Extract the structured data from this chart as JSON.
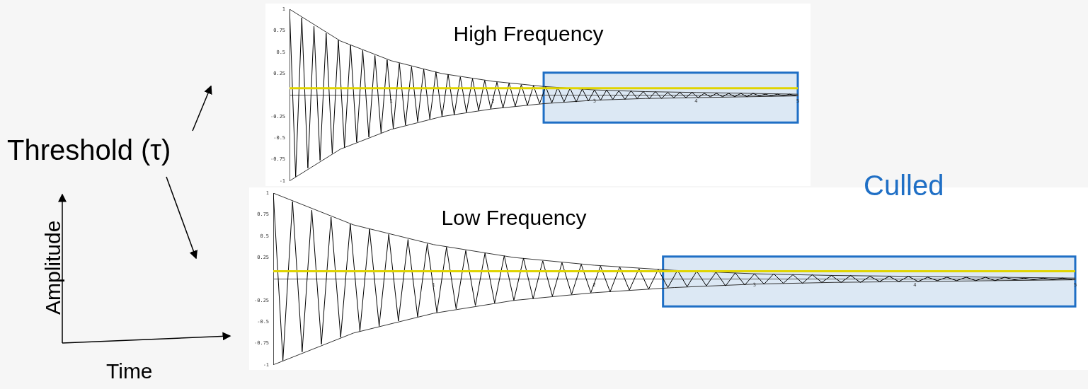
{
  "chart_data": [
    {
      "type": "line",
      "title": "High Frequency",
      "annotations": [
        "Threshold (τ)"
      ],
      "x": [
        0,
        0.06,
        0.12,
        0.18,
        0.24,
        0.3,
        0.36,
        0.42,
        0.48,
        0.54,
        0.6,
        0.66,
        0.72,
        0.78,
        0.84,
        0.9,
        0.96,
        1.02,
        1.08,
        1.14,
        1.2,
        1.26,
        1.32,
        1.38,
        1.44,
        1.5,
        1.56,
        1.62,
        1.68,
        1.74,
        1.8,
        1.86,
        1.92,
        1.98,
        2.04,
        2.1,
        2.16,
        2.22,
        2.28,
        2.34,
        2.4,
        2.46,
        2.52,
        2.58,
        2.64,
        2.7,
        2.76,
        2.82,
        2.88,
        2.94,
        3,
        3.06,
        3.12,
        3.18,
        3.24,
        3.3,
        3.36,
        3.42,
        3.48,
        3.54,
        3.6,
        3.66,
        3.72,
        3.78,
        3.84,
        3.9,
        3.96,
        4.02,
        4.08,
        4.14,
        4.2,
        4.26,
        4.32,
        4.38,
        4.44,
        4.5,
        4.56,
        4.62,
        4.68,
        4.74,
        4.8,
        4.86,
        4.92,
        4.98
      ],
      "series": [
        {
          "color": "#000000",
          "values": [
            1,
            -0.95,
            0.9,
            -0.85,
            0.8,
            -0.76,
            0.72,
            -0.68,
            0.64,
            -0.61,
            0.58,
            -0.55,
            0.52,
            -0.49,
            0.46,
            -0.44,
            0.41,
            -0.39,
            0.37,
            -0.35,
            0.33,
            -0.31,
            0.3,
            -0.28,
            0.27,
            -0.25,
            0.24,
            -0.23,
            0.21,
            -0.2,
            0.19,
            -0.18,
            0.17,
            -0.16,
            0.15,
            -0.15,
            0.14,
            -0.13,
            0.12,
            -0.12,
            0.11,
            -0.1,
            0.1,
            -0.09,
            0.09,
            -0.08,
            0.08,
            -0.08,
            0.07,
            -0.07,
            0.06,
            -0.06,
            0.06,
            -0.05,
            0.05,
            -0.05,
            0.05,
            -0.04,
            0.04,
            -0.04,
            0.04,
            -0.04,
            0.03,
            -0.03,
            0.03,
            -0.03,
            0.03,
            -0.03,
            0.02,
            -0.02,
            0.02,
            -0.02,
            0.02,
            -0.02,
            0.02,
            -0.02,
            0.02,
            -0.01,
            0.01,
            -0.01,
            0.01,
            -0.01,
            0.01,
            -0.01
          ]
        },
        {
          "color": "#333333",
          "x": [
            0,
            0.5,
            1,
            1.5,
            2,
            2.5,
            3,
            3.5,
            4,
            4.5,
            5
          ],
          "values": [
            1,
            0.63,
            0.4,
            0.25,
            0.16,
            0.1,
            0.06,
            0.04,
            0.03,
            0.02,
            0.01
          ]
        },
        {
          "color": "#333333",
          "x": [
            0,
            0.5,
            1,
            1.5,
            2,
            2.5,
            3,
            3.5,
            4,
            4.5,
            5
          ],
          "values": [
            -1,
            -0.63,
            -0.4,
            -0.25,
            -0.16,
            -0.1,
            -0.06,
            -0.04,
            -0.03,
            -0.02,
            -0.01
          ]
        }
      ],
      "xlim": [
        0,
        5
      ],
      "xticks": [
        1,
        2,
        3,
        4,
        5
      ],
      "ylim": [
        -1,
        1
      ],
      "yticks": [
        -1,
        -0.75,
        -0.5,
        -0.25,
        0.25,
        0.5,
        0.75,
        1
      ],
      "ref_lines": [
        {
          "axis": "y",
          "value": 0.08,
          "color": "#e0d400"
        }
      ],
      "bands": [
        {
          "axis": "x",
          "from": 2.5,
          "to": 5,
          "color": "#dce8f4"
        }
      ],
      "grid": false,
      "legend": false,
      "marker": "none",
      "line_style": "solid"
    },
    {
      "type": "line",
      "title": "Low Frequency",
      "xlabel": "Time",
      "ylabel": "Amplitude",
      "annotations": [
        "Culled"
      ],
      "x": [
        0,
        0.06,
        0.12,
        0.18,
        0.24,
        0.3,
        0.36,
        0.42,
        0.48,
        0.54,
        0.6,
        0.66,
        0.72,
        0.78,
        0.84,
        0.9,
        0.96,
        1.02,
        1.08,
        1.14,
        1.2,
        1.26,
        1.32,
        1.38,
        1.44,
        1.5,
        1.56,
        1.62,
        1.68,
        1.74,
        1.8,
        1.86,
        1.92,
        1.98,
        2.04,
        2.1,
        2.16,
        2.22,
        2.28,
        2.34,
        2.4,
        2.46,
        2.52,
        2.58,
        2.64,
        2.7,
        2.76,
        2.82,
        2.88,
        2.94,
        3,
        3.06,
        3.12,
        3.18,
        3.24,
        3.3,
        3.36,
        3.42,
        3.48,
        3.54,
        3.6,
        3.66,
        3.72,
        3.78,
        3.84,
        3.9,
        3.96,
        4.02,
        4.08,
        4.14,
        4.2,
        4.26,
        4.32,
        4.38,
        4.44,
        4.5,
        4.56,
        4.62,
        4.68,
        4.74,
        4.8,
        4.86,
        4.92,
        4.98
      ],
      "series": [
        {
          "color": "#000000",
          "values": [
            1,
            -0.95,
            0.9,
            -0.85,
            0.8,
            -0.76,
            0.72,
            -0.68,
            0.64,
            -0.61,
            0.58,
            -0.55,
            0.52,
            -0.49,
            0.46,
            -0.44,
            0.41,
            -0.39,
            0.37,
            -0.35,
            0.33,
            -0.31,
            0.3,
            -0.28,
            0.27,
            -0.25,
            0.24,
            -0.23,
            0.21,
            -0.2,
            0.19,
            -0.18,
            0.17,
            -0.16,
            0.15,
            -0.15,
            0.14,
            -0.13,
            0.12,
            -0.12,
            0.11,
            -0.1,
            0.1,
            -0.09,
            0.09,
            -0.08,
            0.08,
            -0.08,
            0.07,
            -0.07,
            0.06,
            -0.06,
            0.06,
            -0.05,
            0.05,
            -0.05,
            0.05,
            -0.04,
            0.04,
            -0.04,
            0.04,
            -0.04,
            0.03,
            -0.03,
            0.03,
            -0.03,
            0.03,
            -0.03,
            0.02,
            -0.02,
            0.02,
            -0.02,
            0.02,
            -0.02,
            0.02,
            -0.02,
            0.02,
            -0.01,
            0.01,
            -0.01,
            0.01,
            -0.01,
            0.01,
            -0.01
          ]
        },
        {
          "color": "#333333",
          "x": [
            0,
            0.5,
            1,
            1.5,
            2,
            2.5,
            3,
            3.5,
            4,
            4.5,
            5
          ],
          "values": [
            1,
            0.63,
            0.4,
            0.25,
            0.16,
            0.1,
            0.06,
            0.04,
            0.03,
            0.02,
            0.01
          ]
        },
        {
          "color": "#333333",
          "x": [
            0,
            0.5,
            1,
            1.5,
            2,
            2.5,
            3,
            3.5,
            4,
            4.5,
            5
          ],
          "values": [
            -1,
            -0.63,
            -0.4,
            -0.25,
            -0.16,
            -0.1,
            -0.06,
            -0.04,
            -0.03,
            -0.02,
            -0.01
          ]
        }
      ],
      "xlim": [
        0,
        5
      ],
      "xticks": [
        1,
        2,
        3,
        4,
        5
      ],
      "ylim": [
        -1,
        1
      ],
      "yticks": [
        -1,
        -0.75,
        -0.5,
        -0.25,
        0.25,
        0.5,
        0.75,
        1
      ],
      "ref_lines": [
        {
          "axis": "y",
          "value": 0.09,
          "color": "#e0d400"
        }
      ],
      "bands": [
        {
          "axis": "x",
          "from": 2.43,
          "to": 5,
          "color": "#dce8f4"
        }
      ],
      "grid": false,
      "legend": false,
      "marker": "none",
      "line_style": "solid"
    }
  ]
}
